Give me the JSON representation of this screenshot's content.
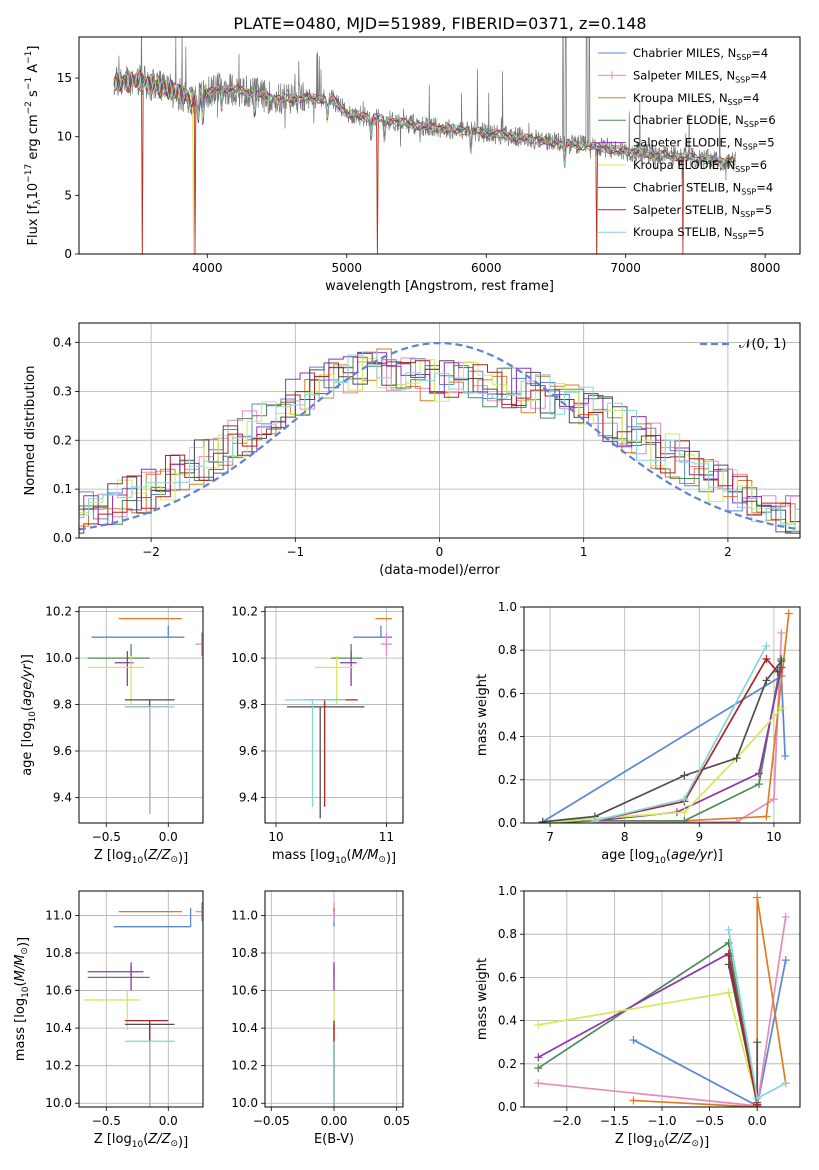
{
  "figure_title": "PLATE=0480, MJD=51989, FIBERID=0371, z=0.148",
  "colors": {
    "Chabrier MILES": "#5b86d6",
    "Salpeter MILES": "#e58bbd",
    "Kroupa MILES": "#e07b22",
    "Chabrier ELODIE": "#4e8a55",
    "Salpeter ELODIE": "#8e35b0",
    "Kroupa ELODIE": "#d2ea5a",
    "Chabrier STELIB": "#4f4f4f",
    "Salpeter STELIB": "#b22222",
    "Kroupa STELIB": "#82d6dc"
  },
  "legend": [
    {
      "name": "Chabrier MILES",
      "label": "Chabrier MILES, N",
      "sub": "SSP",
      "tail": "=4"
    },
    {
      "name": "Salpeter MILES",
      "label": "Salpeter MILES, N",
      "sub": "SSP",
      "tail": "=4"
    },
    {
      "name": "Kroupa MILES",
      "label": "Kroupa MILES, N",
      "sub": "SSP",
      "tail": "=4"
    },
    {
      "name": "Chabrier ELODIE",
      "label": "Chabrier ELODIE, N",
      "sub": "SSP",
      "tail": "=6"
    },
    {
      "name": "Salpeter ELODIE",
      "label": "Salpeter ELODIE, N",
      "sub": "SSP",
      "tail": "=5"
    },
    {
      "name": "Kroupa ELODIE",
      "label": "Kroupa ELODIE, N",
      "sub": "SSP",
      "tail": "=6"
    },
    {
      "name": "Chabrier STELIB",
      "label": "Chabrier STELIB, N",
      "sub": "SSP",
      "tail": "=4"
    },
    {
      "name": "Salpeter STELIB",
      "label": "Salpeter STELIB, N",
      "sub": "SSP",
      "tail": "=5"
    },
    {
      "name": "Kroupa STELIB",
      "label": "Kroupa STELIB, N",
      "sub": "SSP",
      "tail": "=5"
    }
  ],
  "chart_data": [
    {
      "id": "spectrum",
      "type": "line",
      "xlabel": "wavelength [Angstrom, rest frame]",
      "ylabel": "Flux [f_λ10^-17 erg cm^-2 s^-1 A^-1]",
      "xlim": [
        3080,
        8250
      ],
      "ylim": [
        0,
        18.5
      ],
      "xticks": [
        4000,
        5000,
        6000,
        7000,
        8000
      ],
      "yticks": [
        0,
        5,
        10,
        15
      ],
      "continuum": [
        [
          3330,
          14.6
        ],
        [
          3500,
          14.8
        ],
        [
          3700,
          14.1
        ],
        [
          3900,
          13.2
        ],
        [
          4100,
          14.2
        ],
        [
          4300,
          13.8
        ],
        [
          4500,
          13.2
        ],
        [
          4700,
          13.3
        ],
        [
          4900,
          13.2
        ],
        [
          5000,
          12.0
        ],
        [
          5300,
          11.4
        ],
        [
          5600,
          10.8
        ],
        [
          5900,
          10.5
        ],
        [
          6200,
          10.0
        ],
        [
          6500,
          9.5
        ],
        [
          6800,
          9.1
        ],
        [
          7100,
          8.6
        ],
        [
          7400,
          8.3
        ],
        [
          7700,
          7.9
        ]
      ],
      "absorption_features_model": [
        3530,
        3910,
        5220,
        6790,
        7410
      ],
      "emission_lines_data": [
        6550,
        6570,
        6720,
        6740
      ],
      "grid": false
    },
    {
      "id": "residuals",
      "type": "line",
      "xlabel": "(data-model)/error",
      "ylabel": "Normed distribution",
      "xlim": [
        -2.5,
        2.5
      ],
      "ylim": [
        0,
        0.44
      ],
      "xticks": [
        -2,
        -1,
        0,
        1,
        2
      ],
      "yticks": [
        0.0,
        0.1,
        0.2,
        0.3,
        0.4
      ],
      "gaussian_label": "𝒩(0, 1)",
      "envelope_x": [
        -2.5,
        -2.0,
        -1.5,
        -1.0,
        -0.5,
        0.0,
        0.5,
        1.0,
        1.5,
        2.0,
        2.5
      ],
      "envelope_y": [
        0.045,
        0.1,
        0.18,
        0.29,
        0.35,
        0.32,
        0.31,
        0.27,
        0.19,
        0.1,
        0.04
      ],
      "grid": true
    },
    {
      "id": "age_vs_Z",
      "type": "errorbar",
      "xlabel": "Z [log10(Z/Z☉)]",
      "ylabel": "age  [log10(age/yr)]",
      "xlim": [
        -0.72,
        0.28
      ],
      "ylim": [
        9.29,
        10.22
      ],
      "xticks": [
        -0.5,
        0.0
      ],
      "yticks": [
        9.4,
        9.6,
        9.8,
        10.0,
        10.2
      ],
      "points": [
        {
          "series": "Chabrier MILES",
          "x": 0.0,
          "xerr": [
            0.62,
            0.13
          ],
          "y": 10.09,
          "yerr": [
            0.0,
            0.05
          ]
        },
        {
          "series": "Salpeter MILES",
          "x": 0.27,
          "xerr": [
            0.05,
            0.0
          ],
          "y": 10.06,
          "yerr": [
            0.05,
            0.05
          ]
        },
        {
          "series": "Kroupa MILES",
          "x": 0.0,
          "xerr": [
            0.4,
            0.11
          ],
          "y": 10.17,
          "yerr": [
            0.0,
            0.0
          ]
        },
        {
          "series": "Chabrier ELODIE",
          "x": -0.3,
          "xerr": [
            0.35,
            0.15
          ],
          "y": 10.0,
          "yerr": [
            0.0,
            0.06
          ]
        },
        {
          "series": "Salpeter ELODIE",
          "x": -0.33,
          "xerr": [
            0.1,
            0.05
          ],
          "y": 9.98,
          "yerr": [
            0.1,
            0.05
          ]
        },
        {
          "series": "Kroupa ELODIE",
          "x": -0.3,
          "xerr": [
            0.35,
            0.1
          ],
          "y": 9.96,
          "yerr": [
            0.16,
            0.05
          ]
        },
        {
          "series": "Chabrier STELIB",
          "x": -0.15,
          "xerr": [
            0.2,
            0.2
          ],
          "y": 9.82,
          "yerr": [
            0.48,
            0.0
          ]
        },
        {
          "series": "Salpeter STELIB",
          "x": -0.15,
          "xerr": [
            0.2,
            0.15
          ],
          "y": 9.79,
          "yerr": [
            0.46,
            0.0
          ]
        },
        {
          "series": "Kroupa STELIB",
          "x": -0.15,
          "xerr": [
            0.2,
            0.2
          ],
          "y": 9.79,
          "yerr": [
            0.46,
            0.0
          ]
        }
      ]
    },
    {
      "id": "age_vs_mass",
      "type": "errorbar",
      "xlabel": "mass [log10(M/M☉)]",
      "ylabel": "",
      "xlim": [
        9.9,
        11.15
      ],
      "ylim": [
        9.29,
        10.22
      ],
      "xticks": [
        10,
        11
      ],
      "yticks": [
        9.4,
        9.6,
        9.8,
        10.0,
        10.2
      ],
      "points": [
        {
          "series": "Chabrier MILES",
          "x": 10.95,
          "xerr": [
            0.25,
            0.1
          ],
          "y": 10.09,
          "yerr": [
            0.0,
            0.05
          ]
        },
        {
          "series": "Salpeter MILES",
          "x": 11.0,
          "xerr": [
            0.05,
            0.05
          ],
          "y": 10.06,
          "yerr": [
            0.05,
            0.05
          ]
        },
        {
          "series": "Kroupa MILES",
          "x": 11.0,
          "xerr": [
            0.1,
            0.05
          ],
          "y": 10.17,
          "yerr": [
            0.0,
            0.0
          ]
        },
        {
          "series": "Chabrier ELODIE",
          "x": 10.68,
          "xerr": [
            0.18,
            0.1
          ],
          "y": 10.0,
          "yerr": [
            0.0,
            0.06
          ]
        },
        {
          "series": "Salpeter ELODIE",
          "x": 10.68,
          "xerr": [
            0.1,
            0.05
          ],
          "y": 9.98,
          "yerr": [
            0.1,
            0.05
          ]
        },
        {
          "series": "Kroupa ELODIE",
          "x": 10.55,
          "xerr": [
            0.2,
            0.15
          ],
          "y": 9.96,
          "yerr": [
            0.16,
            0.05
          ]
        },
        {
          "series": "Chabrier STELIB",
          "x": 10.4,
          "xerr": [
            0.3,
            0.4
          ],
          "y": 9.79,
          "yerr": [
            0.48,
            0.0
          ]
        },
        {
          "series": "Salpeter STELIB",
          "x": 10.44,
          "xerr": [
            0.2,
            0.3
          ],
          "y": 9.82,
          "yerr": [
            0.46,
            0.0
          ]
        },
        {
          "series": "Kroupa STELIB",
          "x": 10.33,
          "xerr": [
            0.25,
            0.3
          ],
          "y": 9.82,
          "yerr": [
            0.46,
            0.0
          ]
        }
      ]
    },
    {
      "id": "massweight_vs_age",
      "type": "line",
      "xlabel": "age  [log10(age/yr)]",
      "ylabel": "mass weight",
      "xlim": [
        6.65,
        10.35
      ],
      "ylim": [
        0,
        1.0
      ],
      "xticks": [
        7,
        8,
        9,
        10
      ],
      "yticks": [
        0.0,
        0.2,
        0.4,
        0.6,
        0.8,
        1.0
      ],
      "series": [
        {
          "name": "Chabrier MILES",
          "x": [
            6.9,
            10.1,
            10.15
          ],
          "y": [
            0.005,
            0.68,
            0.31
          ]
        },
        {
          "name": "Salpeter MILES",
          "x": [
            7.6,
            9.5,
            10.0,
            10.1
          ],
          "y": [
            0.0,
            0.005,
            0.11,
            0.88
          ]
        },
        {
          "name": "Kroupa MILES",
          "x": [
            7.6,
            8.8,
            9.9,
            10.2
          ],
          "y": [
            0.01,
            0.01,
            0.03,
            0.97
          ]
        },
        {
          "name": "Chabrier ELODIE",
          "x": [
            6.9,
            7.6,
            8.8,
            9.8,
            10.1
          ],
          "y": [
            0.0,
            0.01,
            0.01,
            0.18,
            0.76
          ]
        },
        {
          "name": "Salpeter ELODIE",
          "x": [
            7.6,
            8.7,
            9.8,
            10.1
          ],
          "y": [
            0.01,
            0.05,
            0.23,
            0.72
          ]
        },
        {
          "name": "Kroupa ELODIE",
          "x": [
            6.9,
            7.6,
            8.8,
            9.5,
            10.1
          ],
          "y": [
            0.0,
            0.02,
            0.05,
            0.3,
            0.53
          ]
        },
        {
          "name": "Chabrier STELIB",
          "x": [
            6.9,
            7.6,
            8.8,
            9.5,
            9.9,
            10.1
          ],
          "y": [
            0.005,
            0.03,
            0.22,
            0.3,
            0.66,
            0.75
          ]
        },
        {
          "name": "Salpeter STELIB",
          "x": [
            7.6,
            8.8,
            9.9,
            10.05
          ],
          "y": [
            0.01,
            0.1,
            0.76,
            0.7
          ]
        },
        {
          "name": "Kroupa STELIB",
          "x": [
            7.6,
            8.8,
            9.9
          ],
          "y": [
            0.01,
            0.11,
            0.82
          ]
        }
      ],
      "grid": true
    },
    {
      "id": "mass_vs_Z",
      "type": "errorbar",
      "xlabel": "Z [log10(Z/Z☉)]",
      "ylabel": "mass [log10(M/M☉)]",
      "xlim": [
        -0.72,
        0.28
      ],
      "ylim": [
        9.98,
        11.13
      ],
      "xticks": [
        -0.5,
        0.0
      ],
      "yticks": [
        10.0,
        10.2,
        10.4,
        10.6,
        10.8,
        11.0
      ],
      "points": [
        {
          "series": "Chabrier MILES",
          "x": 0.18,
          "xerr": [
            0.62,
            0.0
          ],
          "y": 10.94,
          "yerr": [
            0.0,
            0.1
          ]
        },
        {
          "series": "Salpeter MILES",
          "x": 0.27,
          "xerr": [
            0.05,
            0.0
          ],
          "y": 11.02,
          "yerr": [
            0.05,
            0.05
          ]
        },
        {
          "series": "Kroupa MILES",
          "x": 0.0,
          "xerr": [
            0.4,
            0.11
          ],
          "y": 11.02,
          "yerr": [
            0.0,
            0.0
          ]
        },
        {
          "series": "Chabrier ELODIE",
          "x": -0.3,
          "xerr": [
            0.35,
            0.15
          ],
          "y": 10.67,
          "yerr": [
            0.0,
            0.06
          ]
        },
        {
          "series": "Salpeter ELODIE",
          "x": -0.3,
          "xerr": [
            0.35,
            0.1
          ],
          "y": 10.7,
          "yerr": [
            0.1,
            0.05
          ]
        },
        {
          "series": "Kroupa ELODIE",
          "x": -0.33,
          "xerr": [
            0.35,
            0.1
          ],
          "y": 10.55,
          "yerr": [
            0.16,
            0.05
          ]
        },
        {
          "series": "Chabrier STELIB",
          "x": -0.15,
          "xerr": [
            0.2,
            0.2
          ],
          "y": 10.42,
          "yerr": [
            0.48,
            0.0
          ]
        },
        {
          "series": "Salpeter STELIB",
          "x": -0.15,
          "xerr": [
            0.2,
            0.15
          ],
          "y": 10.44,
          "yerr": [
            0.46,
            0.0
          ]
        },
        {
          "series": "Kroupa STELIB",
          "x": -0.15,
          "xerr": [
            0.2,
            0.2
          ],
          "y": 10.33,
          "yerr": [
            0.46,
            0.0
          ]
        }
      ]
    },
    {
      "id": "mass_vs_ebv",
      "type": "errorbar",
      "xlabel": "E(B-V)",
      "ylabel": "",
      "xlim": [
        -0.055,
        0.055
      ],
      "ylim": [
        9.98,
        11.13
      ],
      "xticks": [
        -0.05,
        0.0,
        0.05
      ],
      "yticks": [
        10.0,
        10.2,
        10.4,
        10.6,
        10.8,
        11.0
      ],
      "points": [
        {
          "series": "Chabrier MILES",
          "x": 0.0,
          "xerr": [
            0,
            0
          ],
          "y": 10.94,
          "yerr": [
            0.0,
            0.1
          ]
        },
        {
          "series": "Salpeter MILES",
          "x": 0.0,
          "xerr": [
            0,
            0
          ],
          "y": 11.02,
          "yerr": [
            0.05,
            0.05
          ]
        },
        {
          "series": "Kroupa MILES",
          "x": 0.0,
          "xerr": [
            0,
            0
          ],
          "y": 11.02,
          "yerr": [
            0.0,
            0.02
          ]
        },
        {
          "series": "Chabrier ELODIE",
          "x": 0.0,
          "xerr": [
            0,
            0
          ],
          "y": 10.67,
          "yerr": [
            0.0,
            0.06
          ]
        },
        {
          "series": "Salpeter ELODIE",
          "x": 0.0,
          "xerr": [
            0,
            0
          ],
          "y": 10.7,
          "yerr": [
            0.1,
            0.05
          ]
        },
        {
          "series": "Kroupa ELODIE",
          "x": 0.0,
          "xerr": [
            0,
            0
          ],
          "y": 10.55,
          "yerr": [
            0.16,
            0.05
          ]
        },
        {
          "series": "Chabrier STELIB",
          "x": 0.0,
          "xerr": [
            0,
            0
          ],
          "y": 10.42,
          "yerr": [
            0.48,
            0.0
          ]
        },
        {
          "series": "Salpeter STELIB",
          "x": 0.0,
          "xerr": [
            0,
            0
          ],
          "y": 10.44,
          "yerr": [
            0.46,
            0.0
          ]
        },
        {
          "series": "Kroupa STELIB",
          "x": 0.0,
          "xerr": [
            0,
            0
          ],
          "y": 10.33,
          "yerr": [
            0.46,
            0.0
          ]
        }
      ]
    },
    {
      "id": "massweight_vs_Z",
      "type": "line",
      "xlabel": "Z [log10(Z/Z☉)]",
      "ylabel": "mass weight",
      "xlim": [
        -2.45,
        0.45
      ],
      "ylim": [
        0,
        1.0
      ],
      "xticks": [
        -2.0,
        -1.5,
        -1.0,
        -0.5,
        0.0
      ],
      "yticks": [
        0.0,
        0.2,
        0.4,
        0.6,
        0.8,
        1.0
      ],
      "series": [
        {
          "name": "Chabrier MILES",
          "x": [
            -1.3,
            0.0,
            0.3
          ],
          "y": [
            0.31,
            0.005,
            0.68
          ]
        },
        {
          "name": "Salpeter MILES",
          "x": [
            -2.3,
            0.0,
            0.3
          ],
          "y": [
            0.11,
            0.005,
            0.88
          ]
        },
        {
          "name": "Kroupa MILES",
          "x": [
            -1.3,
            0.0,
            0.0,
            0.3
          ],
          "y": [
            0.03,
            0.0,
            0.97,
            0.11
          ]
        },
        {
          "name": "Chabrier ELODIE",
          "x": [
            -2.3,
            -0.3,
            0.0
          ],
          "y": [
            0.18,
            0.76,
            0.01
          ]
        },
        {
          "name": "Salpeter ELODIE",
          "x": [
            -2.3,
            -0.3,
            0.0
          ],
          "y": [
            0.23,
            0.71,
            0.01
          ]
        },
        {
          "name": "Kroupa ELODIE",
          "x": [
            -2.3,
            -0.3,
            0.0
          ],
          "y": [
            0.38,
            0.53,
            0.02
          ]
        },
        {
          "name": "Chabrier STELIB",
          "x": [
            -0.3,
            0.0,
            0.0
          ],
          "y": [
            0.66,
            0.02,
            0.3
          ]
        },
        {
          "name": "Salpeter STELIB",
          "x": [
            -0.3,
            0.0
          ],
          "y": [
            0.7,
            0.01
          ]
        },
        {
          "name": "Kroupa STELIB",
          "x": [
            -0.3,
            0.0,
            0.3
          ],
          "y": [
            0.82,
            0.04,
            0.11
          ]
        }
      ],
      "grid": true
    }
  ]
}
